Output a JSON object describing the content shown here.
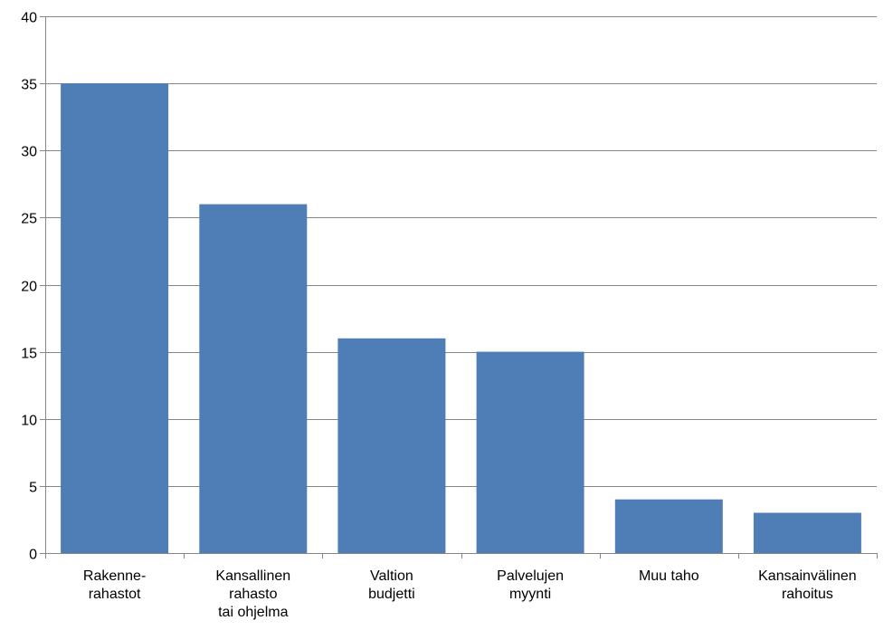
{
  "chart_data": {
    "type": "bar",
    "categories": [
      [
        "Rakenne-",
        "rahastot"
      ],
      [
        "Kansallinen",
        "rahasto",
        "tai ohjelma"
      ],
      [
        "Valtion",
        "budjetti"
      ],
      [
        "Palvelujen",
        "myynti"
      ],
      [
        "Muu taho"
      ],
      [
        "Kansainvälinen",
        "rahoitus"
      ]
    ],
    "values": [
      35,
      26,
      16,
      15,
      4,
      3
    ],
    "ylim": [
      0,
      40
    ],
    "yticks": [
      "0",
      "5",
      "10",
      "15",
      "20",
      "25",
      "30",
      "35",
      "40"
    ],
    "title": "",
    "xlabel": "",
    "ylabel": "",
    "grid": true,
    "colors": {
      "bar": "#4f7db5",
      "grid": "#868686",
      "axis": "#868686"
    }
  }
}
